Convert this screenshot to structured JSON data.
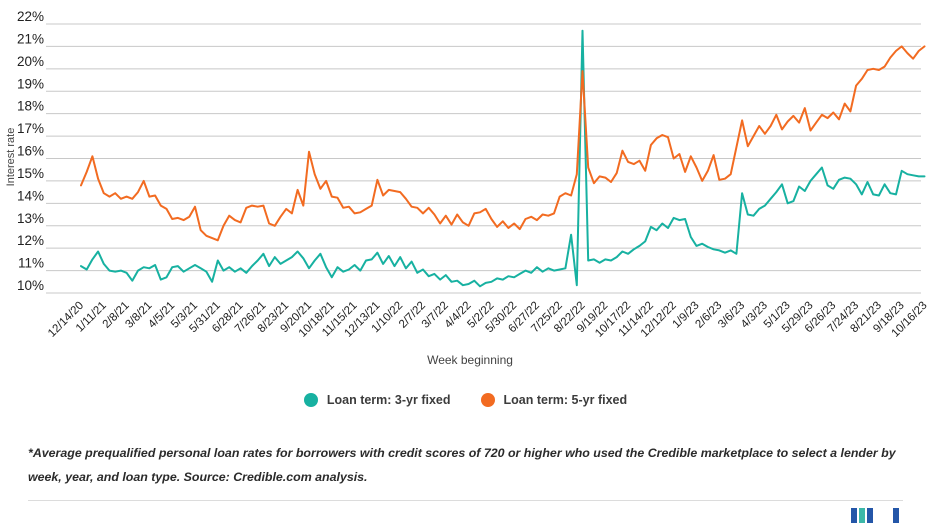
{
  "chart_data": {
    "type": "line",
    "title": "",
    "xlabel": "Week beginning",
    "ylabel": "Interest rate",
    "ylim": [
      10,
      22
    ],
    "grid": "horizontal",
    "legend_position": "bottom",
    "points_per_series": 149,
    "x_ticks_every_n_points": 4,
    "y_tick_labels": [
      "22%",
      "21%",
      "20%",
      "19%",
      "18%",
      "17%",
      "16%",
      "15%",
      "14%",
      "13%",
      "12%",
      "11%",
      "10%"
    ],
    "x_tick_labels": [
      "12/14/20",
      "1/11/21",
      "2/8/21",
      "3/8/21",
      "4/5/21",
      "5/3/21",
      "5/31/21",
      "6/28/21",
      "7/26/21",
      "8/23/21",
      "9/20/21",
      "10/18/21",
      "11/15/21",
      "12/13/21",
      "1/10/22",
      "2/7/22",
      "3/7/22",
      "4/4/22",
      "5/2/22",
      "5/30/22",
      "6/27/22",
      "7/25/22",
      "8/22/22",
      "9/19/22",
      "10/17/22",
      "11/14/22",
      "12/12/22",
      "1/9/23",
      "2/6/23",
      "3/6/23",
      "4/3/23",
      "5/1/23",
      "5/29/23",
      "6/26/23",
      "7/24/23",
      "8/21/23",
      "9/18/23",
      "10/16/23"
    ],
    "series": [
      {
        "name": "Loan term: 3-yr fixed",
        "color": "#17b1a1",
        "values": [
          11.2,
          11.05,
          11.5,
          11.85,
          11.3,
          11.0,
          10.95,
          11.0,
          10.9,
          10.55,
          11.0,
          11.15,
          11.1,
          11.25,
          10.6,
          10.7,
          11.15,
          11.2,
          10.95,
          11.1,
          11.25,
          11.1,
          10.95,
          10.5,
          11.45,
          11.0,
          11.15,
          10.95,
          11.1,
          10.9,
          11.2,
          11.45,
          11.75,
          11.2,
          11.6,
          11.3,
          11.45,
          11.6,
          11.85,
          11.55,
          11.1,
          11.45,
          11.75,
          11.15,
          10.7,
          11.15,
          10.95,
          11.05,
          11.25,
          11.0,
          11.45,
          11.5,
          11.8,
          11.3,
          11.65,
          11.2,
          11.6,
          11.1,
          11.4,
          10.9,
          11.05,
          10.75,
          10.85,
          10.6,
          10.8,
          10.5,
          10.55,
          10.35,
          10.4,
          10.55,
          10.3,
          10.45,
          10.5,
          10.65,
          10.6,
          10.75,
          10.7,
          10.85,
          11.0,
          10.9,
          11.15,
          10.95,
          11.1,
          11.0,
          11.05,
          11.1,
          12.6,
          10.35,
          21.7,
          11.45,
          11.5,
          11.35,
          11.5,
          11.45,
          11.6,
          11.85,
          11.75,
          11.95,
          12.1,
          12.3,
          12.95,
          12.8,
          13.1,
          12.9,
          13.35,
          13.25,
          13.3,
          12.5,
          12.1,
          12.2,
          12.05,
          11.95,
          11.9,
          11.8,
          11.9,
          11.75,
          14.45,
          13.5,
          13.45,
          13.75,
          13.9,
          14.2,
          14.5,
          14.85,
          14.0,
          14.1,
          14.75,
          14.55,
          15.0,
          15.3,
          15.6,
          14.8,
          14.65,
          15.05,
          15.15,
          15.1,
          14.85,
          14.4,
          14.95,
          14.4,
          14.35,
          14.85,
          14.45,
          14.4,
          15.45,
          15.3,
          15.25,
          15.2,
          15.2
        ]
      },
      {
        "name": "Loan term: 5-yr fixed",
        "color": "#f26b21",
        "values": [
          14.8,
          15.4,
          16.1,
          15.1,
          14.45,
          14.3,
          14.45,
          14.2,
          14.3,
          14.2,
          14.5,
          15.0,
          14.3,
          14.35,
          13.9,
          13.75,
          13.3,
          13.35,
          13.25,
          13.4,
          13.85,
          12.8,
          12.55,
          12.45,
          12.35,
          13.0,
          13.45,
          13.25,
          13.15,
          13.8,
          13.9,
          13.85,
          13.9,
          13.1,
          13.0,
          13.4,
          13.75,
          13.55,
          14.6,
          13.9,
          16.3,
          15.3,
          14.65,
          15.0,
          14.3,
          14.25,
          13.8,
          13.85,
          13.55,
          13.6,
          13.75,
          13.9,
          15.05,
          14.35,
          14.6,
          14.55,
          14.5,
          14.2,
          13.85,
          13.8,
          13.55,
          13.8,
          13.5,
          13.1,
          13.45,
          13.05,
          13.5,
          13.15,
          13.0,
          13.55,
          13.6,
          13.75,
          13.3,
          12.95,
          13.2,
          12.9,
          13.1,
          12.85,
          13.3,
          13.4,
          13.25,
          13.5,
          13.45,
          13.55,
          14.3,
          14.45,
          14.35,
          15.3,
          19.9,
          15.6,
          14.9,
          15.2,
          15.15,
          14.95,
          15.35,
          16.35,
          15.85,
          15.75,
          15.9,
          15.45,
          16.6,
          16.9,
          17.05,
          16.95,
          16.0,
          16.2,
          15.4,
          16.1,
          15.6,
          15.0,
          15.45,
          16.15,
          15.05,
          15.1,
          15.3,
          16.5,
          17.7,
          16.55,
          17.0,
          17.45,
          17.1,
          17.45,
          17.95,
          17.3,
          17.65,
          17.9,
          17.6,
          18.25,
          17.25,
          17.6,
          17.95,
          17.8,
          18.05,
          17.75,
          18.45,
          18.1,
          19.25,
          19.55,
          19.95,
          20.0,
          19.95,
          20.1,
          20.5,
          20.8,
          21.0,
          20.7,
          20.45,
          20.8,
          21.0
        ]
      }
    ]
  },
  "footnote": {
    "text": "*Average prequalified personal loan rates for borrowers with credit scores of 720 or higher who used the Credible marketplace to select a lender by week, year, and loan type. Source: Credible.com analysis."
  },
  "branding": {
    "logo_bar_colors": [
      "#2456a8",
      "#3cb8a8",
      "#2456a8",
      "#2456a8"
    ]
  },
  "style": {
    "gridline_color": "#c8c8c8",
    "tick_label_color": "#212121",
    "axis_title_color": "#424242"
  }
}
